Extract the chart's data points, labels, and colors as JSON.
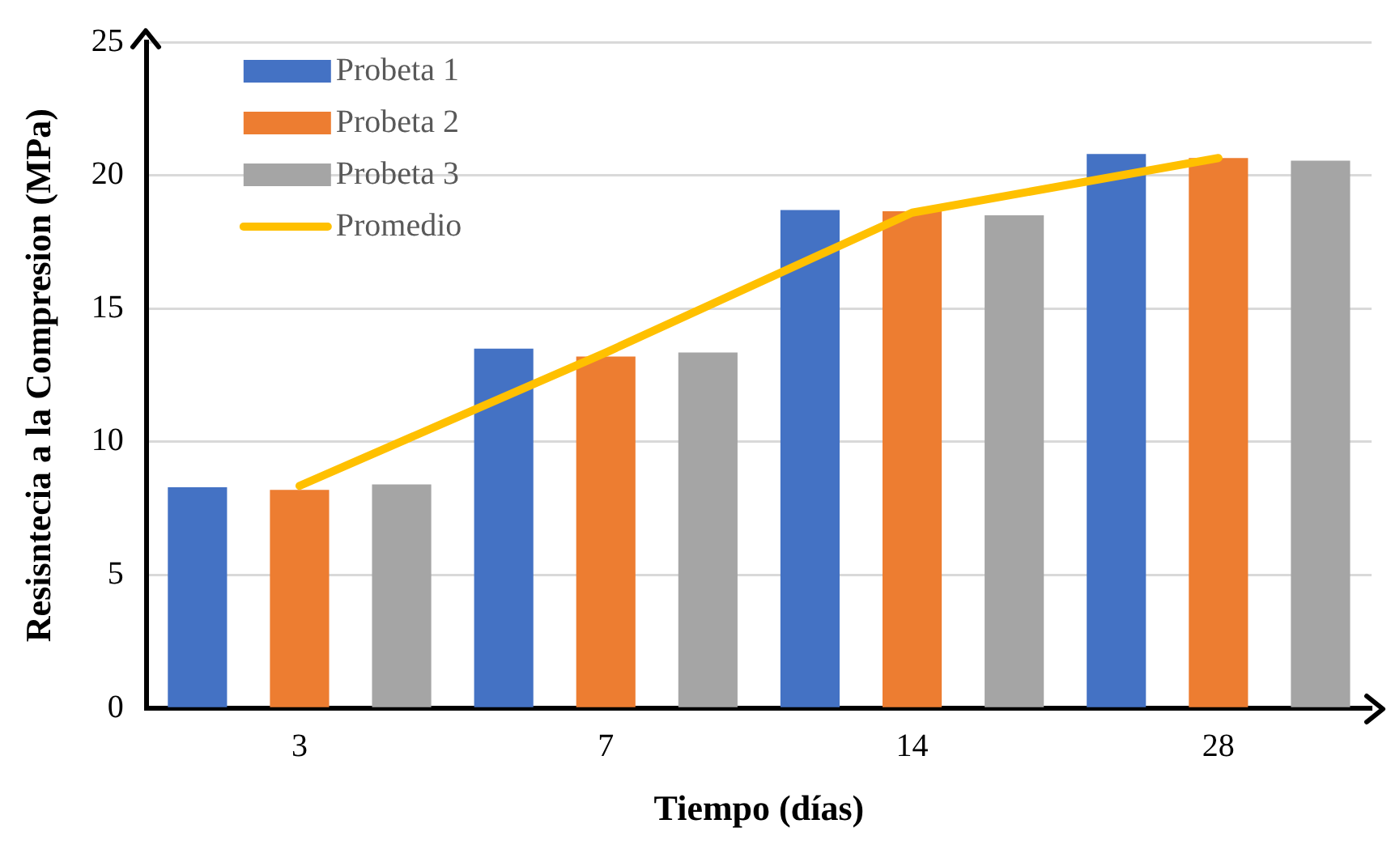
{
  "chart_data": {
    "type": "bar",
    "xlabel": "Tiempo (días)",
    "ylabel": "Resisntecia a la Compresion (MPa)",
    "categories": [
      "3",
      "7",
      "14",
      "28"
    ],
    "series": [
      {
        "name": "Probeta 1",
        "color": "#4472c4",
        "values": [
          8.3,
          13.5,
          18.7,
          20.8
        ]
      },
      {
        "name": "Probeta 2",
        "color": "#ed7d31",
        "values": [
          8.2,
          13.2,
          18.65,
          20.65
        ]
      },
      {
        "name": "Probeta 3",
        "color": "#a5a5a5",
        "values": [
          8.4,
          13.35,
          18.5,
          20.55
        ]
      },
      {
        "name": "Promedio",
        "type": "line",
        "color": "#ffc000",
        "values": [
          8.35,
          13.35,
          18.6,
          20.65
        ]
      }
    ],
    "ylim": [
      0,
      25
    ],
    "yticks": [
      0,
      5,
      10,
      15,
      20,
      25
    ],
    "grid": "y",
    "legend": "top left",
    "marker": "none"
  }
}
